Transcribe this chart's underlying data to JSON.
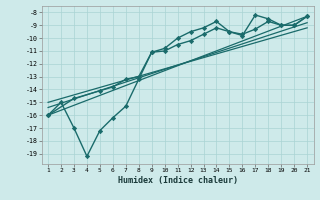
{
  "title": "",
  "xlabel": "Humidex (Indice chaleur)",
  "bg_color": "#ceeaea",
  "grid_color": "#aad4d4",
  "line_color": "#1a6b6b",
  "xlim": [
    0.5,
    21.5
  ],
  "ylim": [
    -19.8,
    -7.5
  ],
  "yticks": [
    -8,
    -9,
    -10,
    -11,
    -12,
    -13,
    -14,
    -15,
    -16,
    -17,
    -18,
    -19
  ],
  "xticks": [
    1,
    2,
    3,
    4,
    5,
    6,
    7,
    8,
    9,
    10,
    11,
    12,
    13,
    14,
    15,
    16,
    17,
    18,
    19,
    20,
    21
  ],
  "series": [
    {
      "x": [
        1,
        2,
        3,
        4,
        5,
        6,
        7,
        8,
        9,
        10,
        11,
        12,
        13,
        14,
        15,
        16,
        17,
        18,
        19,
        20,
        21
      ],
      "y": [
        -16.0,
        -15.0,
        -17.0,
        -19.2,
        -17.2,
        -16.2,
        -15.3,
        -13.2,
        -11.1,
        -10.8,
        -10.0,
        -9.5,
        -9.2,
        -8.7,
        -9.5,
        -9.8,
        -8.2,
        -8.5,
        -9.0,
        -9.0,
        -8.3
      ],
      "marker": true,
      "linewidth": 1.0
    },
    {
      "x": [
        1,
        3,
        5,
        6,
        7,
        8,
        9,
        10,
        11,
        12,
        13,
        14,
        15,
        16,
        17,
        18,
        19,
        20,
        21
      ],
      "y": [
        -16.0,
        -14.7,
        -14.1,
        -13.8,
        -13.2,
        -13.0,
        -11.1,
        -11.0,
        -10.5,
        -10.2,
        -9.7,
        -9.2,
        -9.5,
        -9.7,
        -9.3,
        -8.7,
        -9.0,
        -9.0,
        -8.3
      ],
      "marker": true,
      "linewidth": 1.0
    },
    {
      "x": [
        1,
        21
      ],
      "y": [
        -16.0,
        -8.3
      ],
      "marker": false,
      "linewidth": 0.9
    },
    {
      "x": [
        1,
        21
      ],
      "y": [
        -15.4,
        -8.8
      ],
      "marker": false,
      "linewidth": 0.9
    },
    {
      "x": [
        1,
        21
      ],
      "y": [
        -15.0,
        -9.2
      ],
      "marker": false,
      "linewidth": 0.9
    }
  ]
}
